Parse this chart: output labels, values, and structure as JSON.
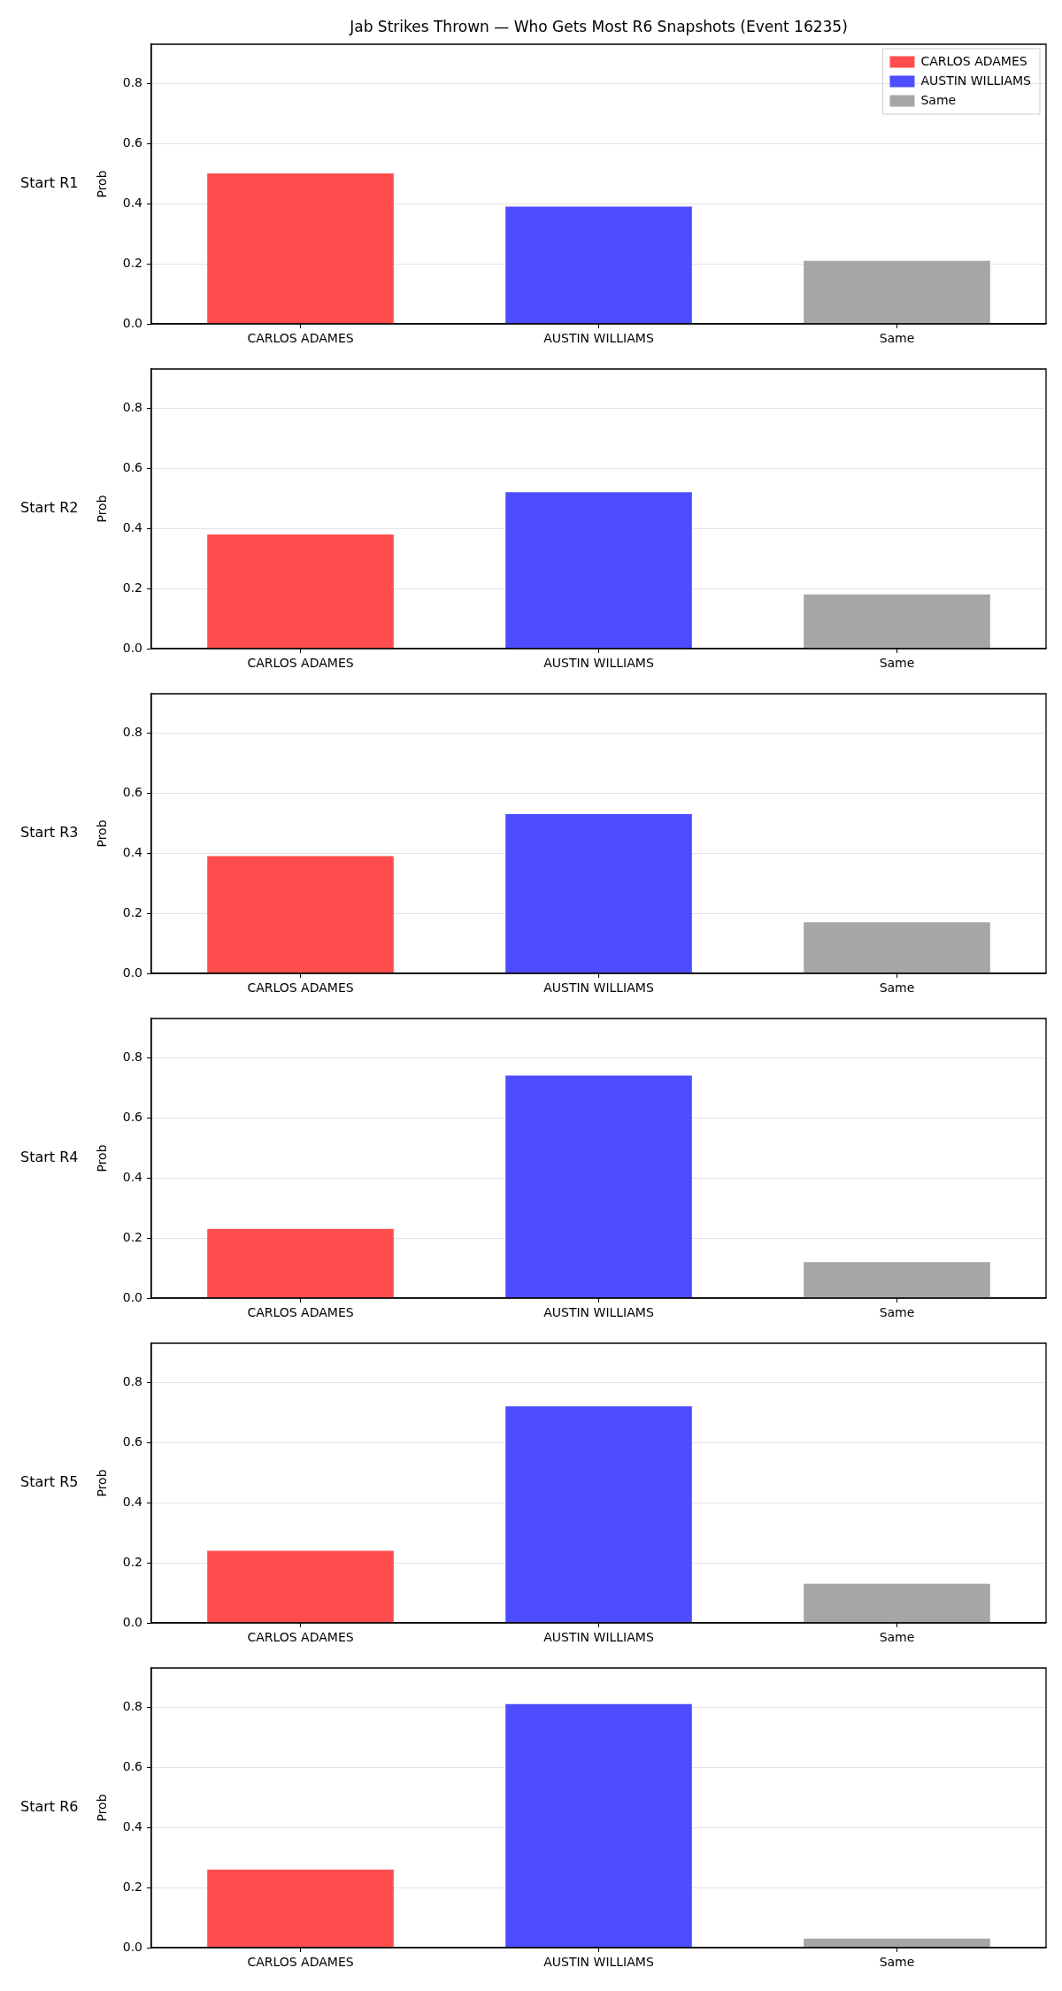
{
  "chart_data": [
    {
      "type": "bar",
      "title": "Jab Strikes Thrown — Who Gets Most R6 Snapshots (Event 16235)",
      "subtitle": "Start R1",
      "ylabel": "Prob",
      "categories": [
        "CARLOS ADAMES",
        "AUSTIN WILLIAMS",
        "Same"
      ],
      "series": [
        {
          "name": "CARLOS ADAMES",
          "color": "#ff4d4d",
          "values": [
            0.5,
            null,
            null
          ]
        },
        {
          "name": "AUSTIN WILLIAMS",
          "color": "#4d4dff",
          "values": [
            null,
            0.39,
            null
          ]
        },
        {
          "name": "Same",
          "color": "#a6a6a6",
          "values": [
            null,
            null,
            0.21
          ]
        }
      ],
      "ylim": [
        0,
        0.93
      ],
      "yticks": [
        {
          "value": 0,
          "label": "0.0"
        },
        {
          "value": 0.2,
          "label": "0.2"
        },
        {
          "value": 0.4,
          "label": "0.4"
        },
        {
          "value": 0.6,
          "label": "0.6"
        },
        {
          "value": 0.8,
          "label": "0.8"
        }
      ],
      "grid": "y",
      "legend": "top right"
    },
    {
      "type": "bar",
      "subtitle": "Start R2",
      "ylabel": "Prob",
      "categories": [
        "CARLOS ADAMES",
        "AUSTIN WILLIAMS",
        "Same"
      ],
      "values": [
        0.38,
        0.52,
        0.18
      ],
      "colors": [
        "#ff4d4d",
        "#4d4dff",
        "#a6a6a6"
      ],
      "ylim": [
        0,
        0.93
      ],
      "yticks": [
        {
          "value": 0,
          "label": "0.0"
        },
        {
          "value": 0.2,
          "label": "0.2"
        },
        {
          "value": 0.4,
          "label": "0.4"
        },
        {
          "value": 0.6,
          "label": "0.6"
        },
        {
          "value": 0.8,
          "label": "0.8"
        }
      ],
      "grid": "y"
    },
    {
      "type": "bar",
      "subtitle": "Start R3",
      "ylabel": "Prob",
      "categories": [
        "CARLOS ADAMES",
        "AUSTIN WILLIAMS",
        "Same"
      ],
      "values": [
        0.39,
        0.53,
        0.17
      ],
      "colors": [
        "#ff4d4d",
        "#4d4dff",
        "#a6a6a6"
      ],
      "ylim": [
        0,
        0.93
      ],
      "yticks": [
        {
          "value": 0,
          "label": "0.0"
        },
        {
          "value": 0.2,
          "label": "0.2"
        },
        {
          "value": 0.4,
          "label": "0.4"
        },
        {
          "value": 0.6,
          "label": "0.6"
        },
        {
          "value": 0.8,
          "label": "0.8"
        }
      ],
      "grid": "y"
    },
    {
      "type": "bar",
      "subtitle": "Start R4",
      "ylabel": "Prob",
      "categories": [
        "CARLOS ADAMES",
        "AUSTIN WILLIAMS",
        "Same"
      ],
      "values": [
        0.23,
        0.74,
        0.12
      ],
      "colors": [
        "#ff4d4d",
        "#4d4dff",
        "#a6a6a6"
      ],
      "ylim": [
        0,
        0.93
      ],
      "yticks": [
        {
          "value": 0,
          "label": "0.0"
        },
        {
          "value": 0.2,
          "label": "0.2"
        },
        {
          "value": 0.4,
          "label": "0.4"
        },
        {
          "value": 0.6,
          "label": "0.6"
        },
        {
          "value": 0.8,
          "label": "0.8"
        }
      ],
      "grid": "y"
    },
    {
      "type": "bar",
      "subtitle": "Start R5",
      "ylabel": "Prob",
      "categories": [
        "CARLOS ADAMES",
        "AUSTIN WILLIAMS",
        "Same"
      ],
      "values": [
        0.24,
        0.72,
        0.13
      ],
      "colors": [
        "#ff4d4d",
        "#4d4dff",
        "#a6a6a6"
      ],
      "ylim": [
        0,
        0.93
      ],
      "yticks": [
        {
          "value": 0,
          "label": "0.0"
        },
        {
          "value": 0.2,
          "label": "0.2"
        },
        {
          "value": 0.4,
          "label": "0.4"
        },
        {
          "value": 0.6,
          "label": "0.6"
        },
        {
          "value": 0.8,
          "label": "0.8"
        }
      ],
      "grid": "y"
    },
    {
      "type": "bar",
      "subtitle": "Start R6",
      "ylabel": "Prob",
      "categories": [
        "CARLOS ADAMES",
        "AUSTIN WILLIAMS",
        "Same"
      ],
      "values": [
        0.26,
        0.81,
        0.03
      ],
      "colors": [
        "#ff4d4d",
        "#4d4dff",
        "#a6a6a6"
      ],
      "ylim": [
        0,
        0.93
      ],
      "yticks": [
        {
          "value": 0,
          "label": "0.0"
        },
        {
          "value": 0.2,
          "label": "0.2"
        },
        {
          "value": 0.4,
          "label": "0.4"
        },
        {
          "value": 0.6,
          "label": "0.6"
        },
        {
          "value": 0.8,
          "label": "0.8"
        }
      ],
      "grid": "y"
    }
  ]
}
